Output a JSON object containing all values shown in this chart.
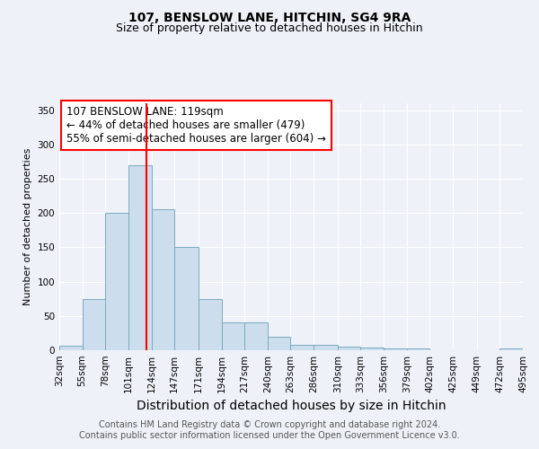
{
  "title": "107, BENSLOW LANE, HITCHIN, SG4 9RA",
  "subtitle": "Size of property relative to detached houses in Hitchin",
  "xlabel": "Distribution of detached houses by size in Hitchin",
  "ylabel": "Number of detached properties",
  "footnote1": "Contains HM Land Registry data © Crown copyright and database right 2024.",
  "footnote2": "Contains public sector information licensed under the Open Government Licence v3.0.",
  "annotation_line1": "107 BENSLOW LANE: 119sqm",
  "annotation_line2": "← 44% of detached houses are smaller (479)",
  "annotation_line3": "55% of semi-detached houses are larger (604) →",
  "bin_edges": [
    32,
    55,
    78,
    101,
    124,
    147,
    171,
    194,
    217,
    240,
    263,
    286,
    310,
    333,
    356,
    379,
    402,
    425,
    449,
    472,
    495
  ],
  "bar_heights": [
    7,
    75,
    200,
    270,
    205,
    150,
    75,
    40,
    40,
    20,
    8,
    8,
    5,
    4,
    2,
    2,
    0,
    0,
    0,
    3
  ],
  "bar_color": "#ccdded",
  "bar_edge_color": "#7aaabf",
  "red_line_x": 119,
  "ylim": [
    0,
    360
  ],
  "yticks": [
    0,
    50,
    100,
    150,
    200,
    250,
    300,
    350
  ],
  "background_color": "#eef2f8",
  "plot_bg_color": "#eef2f8",
  "grid_color": "#ffffff",
  "title_fontsize": 10,
  "subtitle_fontsize": 9,
  "xlabel_fontsize": 10,
  "ylabel_fontsize": 8,
  "tick_fontsize": 7.5,
  "annotation_fontsize": 8.5,
  "footnote_fontsize": 7
}
